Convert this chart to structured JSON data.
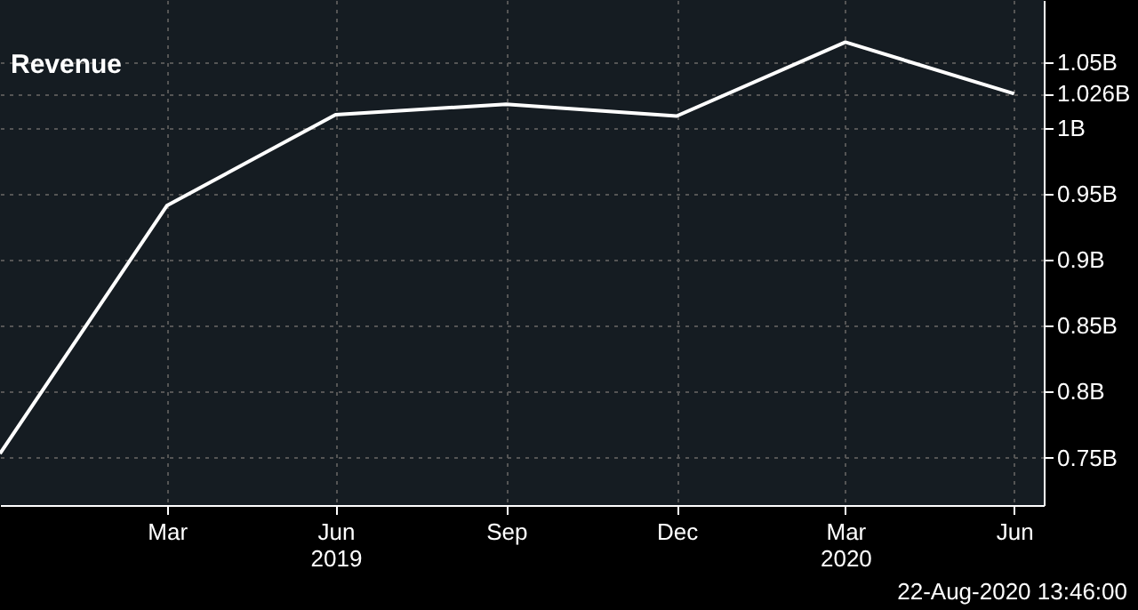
{
  "chart_data": {
    "type": "line",
    "title": "Revenue",
    "x": [
      "2018-12-31",
      "2019-03-31",
      "2019-06-30",
      "2019-09-30",
      "2019-12-31",
      "2020-03-31",
      "2020-06-30"
    ],
    "series": [
      {
        "color": "#ffffff",
        "values": [
          0.753,
          0.941,
          1.01,
          1.018,
          1.009,
          1.065,
          1.026
        ]
      }
    ],
    "xlim": [
      "2018-12-31",
      "2020-07-16"
    ],
    "xticks": [
      {
        "value": "2019-03-31",
        "label": "Mar"
      },
      {
        "value": "2019-06-30",
        "label": "Jun 2019"
      },
      {
        "value": "2019-09-30",
        "label": "Sep"
      },
      {
        "value": "2019-12-31",
        "label": "Dec"
      },
      {
        "value": "2020-03-31",
        "label": "Mar 2020"
      },
      {
        "value": "2020-06-30",
        "label": "Jun"
      }
    ],
    "ylim": [
      0.714,
      1.097
    ],
    "yticks": [
      {
        "value": 0.75,
        "label": "0.75B"
      },
      {
        "value": 0.8,
        "label": "0.8B"
      },
      {
        "value": 0.85,
        "label": "0.85B"
      },
      {
        "value": 0.9,
        "label": "0.9B"
      },
      {
        "value": 0.95,
        "label": "0.95B"
      },
      {
        "value": 1,
        "label": "1B"
      },
      {
        "value": 1.05,
        "label": "1.05B"
      },
      {
        "value": 1.026,
        "label": "1.026B"
      }
    ],
    "annotations": [
      "22-Aug-2020 13:46:00"
    ],
    "grid": true,
    "line_style": "solid",
    "marker": "none"
  }
}
